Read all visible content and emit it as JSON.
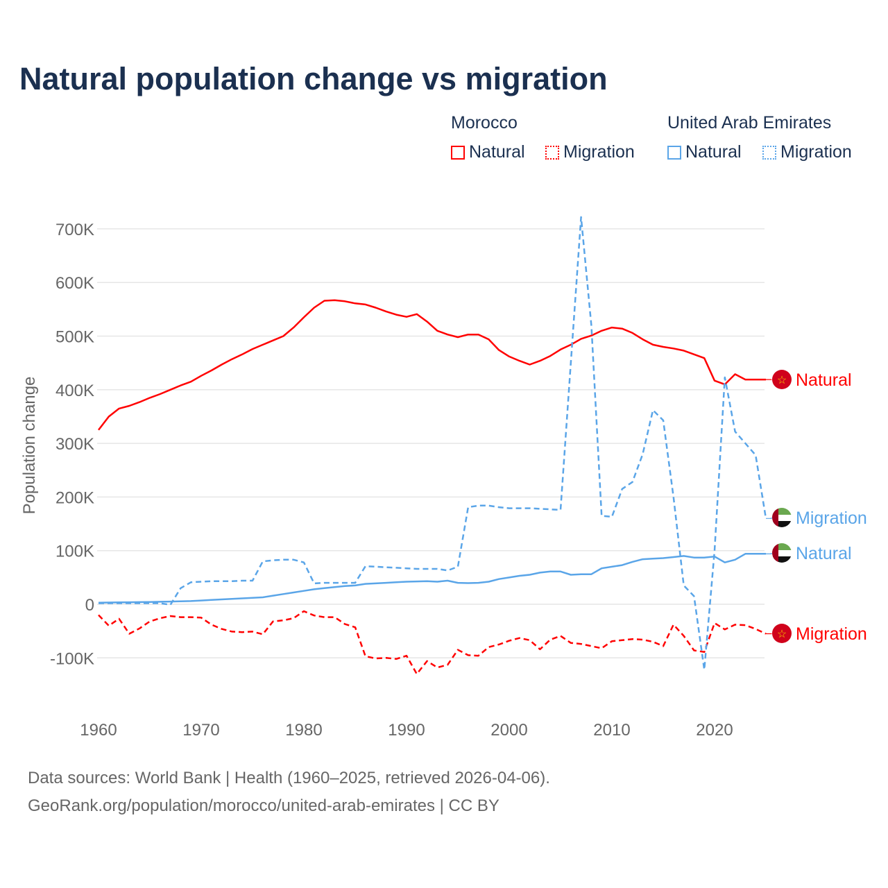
{
  "title": "Natural population change vs migration",
  "legend": {
    "groups": [
      {
        "name": "Morocco",
        "items": [
          "Natural",
          "Migration"
        ],
        "color": "#ff0000"
      },
      {
        "name": "United Arab Emirates",
        "items": [
          "Natural",
          "Migration"
        ],
        "color": "#5aa5e8"
      }
    ]
  },
  "footer": {
    "line1": "Data sources: World Bank | Health (1960–2025, retrieved 2026-04-06).",
    "line2": "GeoRank.org/population/morocco/united-arab-emirates | CC BY"
  },
  "chart_data": {
    "type": "line",
    "title": "Natural population change vs migration",
    "xlabel": "",
    "ylabel": "Population change",
    "xlim": [
      1960,
      2025
    ],
    "ylim": [
      -150000,
      730000
    ],
    "x_ticks": [
      1960,
      1970,
      1980,
      1990,
      2000,
      2010,
      2020
    ],
    "x_tick_labels": [
      "1960",
      "1970",
      "1980",
      "1990",
      "2000",
      "2010",
      "2020"
    ],
    "y_ticks": [
      -100000,
      0,
      100000,
      200000,
      300000,
      400000,
      500000,
      600000,
      700000
    ],
    "y_tick_labels": [
      "-100K",
      "0",
      "100K",
      "200K",
      "300K",
      "400K",
      "500K",
      "600K",
      "700K"
    ],
    "grid": true,
    "x": [
      1960,
      1961,
      1962,
      1963,
      1964,
      1965,
      1966,
      1967,
      1968,
      1969,
      1970,
      1971,
      1972,
      1973,
      1974,
      1975,
      1976,
      1977,
      1978,
      1979,
      1980,
      1981,
      1982,
      1983,
      1984,
      1985,
      1986,
      1987,
      1988,
      1989,
      1990,
      1991,
      1992,
      1993,
      1994,
      1995,
      1996,
      1997,
      1998,
      1999,
      2000,
      2001,
      2002,
      2003,
      2004,
      2005,
      2006,
      2007,
      2008,
      2009,
      2010,
      2011,
      2012,
      2013,
      2014,
      2015,
      2016,
      2017,
      2018,
      2019,
      2020,
      2021,
      2022,
      2023,
      2024,
      2025
    ],
    "series": [
      {
        "name": "Morocco Natural",
        "end_label": "Natural",
        "color": "#ff0000",
        "dash": false,
        "values": [
          325000,
          350000,
          365000,
          370000,
          377000,
          385000,
          392000,
          400000,
          408000,
          415000,
          426000,
          436000,
          447000,
          457000,
          466000,
          476000,
          484000,
          492000,
          500000,
          516000,
          535000,
          553000,
          566000,
          567000,
          565000,
          561000,
          559000,
          553000,
          546000,
          540000,
          536000,
          541000,
          527000,
          510000,
          503000,
          498000,
          503000,
          503000,
          494000,
          474000,
          462000,
          454000,
          447000,
          454000,
          463000,
          475000,
          484000,
          495000,
          501000,
          510000,
          516000,
          514000,
          506000,
          494000,
          484000,
          480000,
          477000,
          473000,
          466000,
          459000,
          417000,
          410000,
          429000,
          419000,
          419000,
          419000
        ]
      },
      {
        "name": "Morocco Migration",
        "end_label": "Migration",
        "color": "#ff0000",
        "dash": true,
        "values": [
          -20000,
          -40000,
          -27000,
          -55000,
          -45000,
          -32000,
          -26000,
          -22000,
          -24000,
          -24000,
          -25000,
          -38000,
          -46000,
          -51000,
          -52000,
          -51000,
          -56000,
          -32000,
          -30000,
          -26000,
          -13000,
          -21000,
          -24000,
          -24000,
          -37000,
          -43000,
          -97000,
          -101000,
          -100000,
          -102000,
          -96000,
          -130000,
          -106000,
          -118000,
          -113000,
          -85000,
          -95000,
          -96000,
          -80000,
          -75000,
          -68000,
          -63000,
          -67000,
          -84000,
          -66000,
          -59000,
          -72000,
          -74000,
          -78000,
          -82000,
          -69000,
          -67000,
          -65000,
          -66000,
          -70000,
          -78000,
          -38000,
          -59000,
          -86000,
          -89000,
          -35000,
          -47000,
          -38000,
          -39000,
          -46000,
          -55000
        ]
      },
      {
        "name": "United Arab Emirates Natural",
        "end_label": "Natural",
        "color": "#5aa5e8",
        "dash": false,
        "values": [
          3000,
          3200,
          3500,
          3800,
          4000,
          4300,
          4600,
          5000,
          5500,
          6000,
          7000,
          8000,
          9000,
          10000,
          11000,
          12000,
          13000,
          16000,
          19000,
          22000,
          25000,
          28000,
          30000,
          32000,
          34000,
          35000,
          38000,
          39000,
          40000,
          41000,
          42000,
          42500,
          43000,
          42000,
          44000,
          40000,
          39500,
          40000,
          42000,
          47000,
          50000,
          53000,
          55000,
          59000,
          61000,
          61000,
          55000,
          56000,
          56000,
          67000,
          70000,
          73000,
          79000,
          84000,
          85000,
          86000,
          88000,
          90000,
          87000,
          87000,
          89000,
          78000,
          83000,
          94000,
          94000,
          94000
        ]
      },
      {
        "name": "United Arab Emirates Migration",
        "end_label": "Migration",
        "color": "#5aa5e8",
        "dash": true,
        "values": [
          2000,
          2000,
          2000,
          2000,
          2000,
          2000,
          2000,
          -1000,
          30000,
          41000,
          42000,
          43000,
          43000,
          43000,
          44000,
          44000,
          80000,
          82000,
          83000,
          83000,
          78000,
          39000,
          40000,
          40000,
          40000,
          40000,
          71000,
          70000,
          69000,
          68000,
          67000,
          66000,
          66000,
          66000,
          63000,
          70000,
          181000,
          184000,
          184000,
          181000,
          179000,
          179000,
          179000,
          178000,
          177000,
          176000,
          450000,
          722000,
          520000,
          165000,
          163000,
          215000,
          228000,
          280000,
          362000,
          343000,
          200000,
          35000,
          15000,
          -122000,
          100000,
          423000,
          322000,
          300000,
          278000,
          160000
        ]
      }
    ]
  }
}
